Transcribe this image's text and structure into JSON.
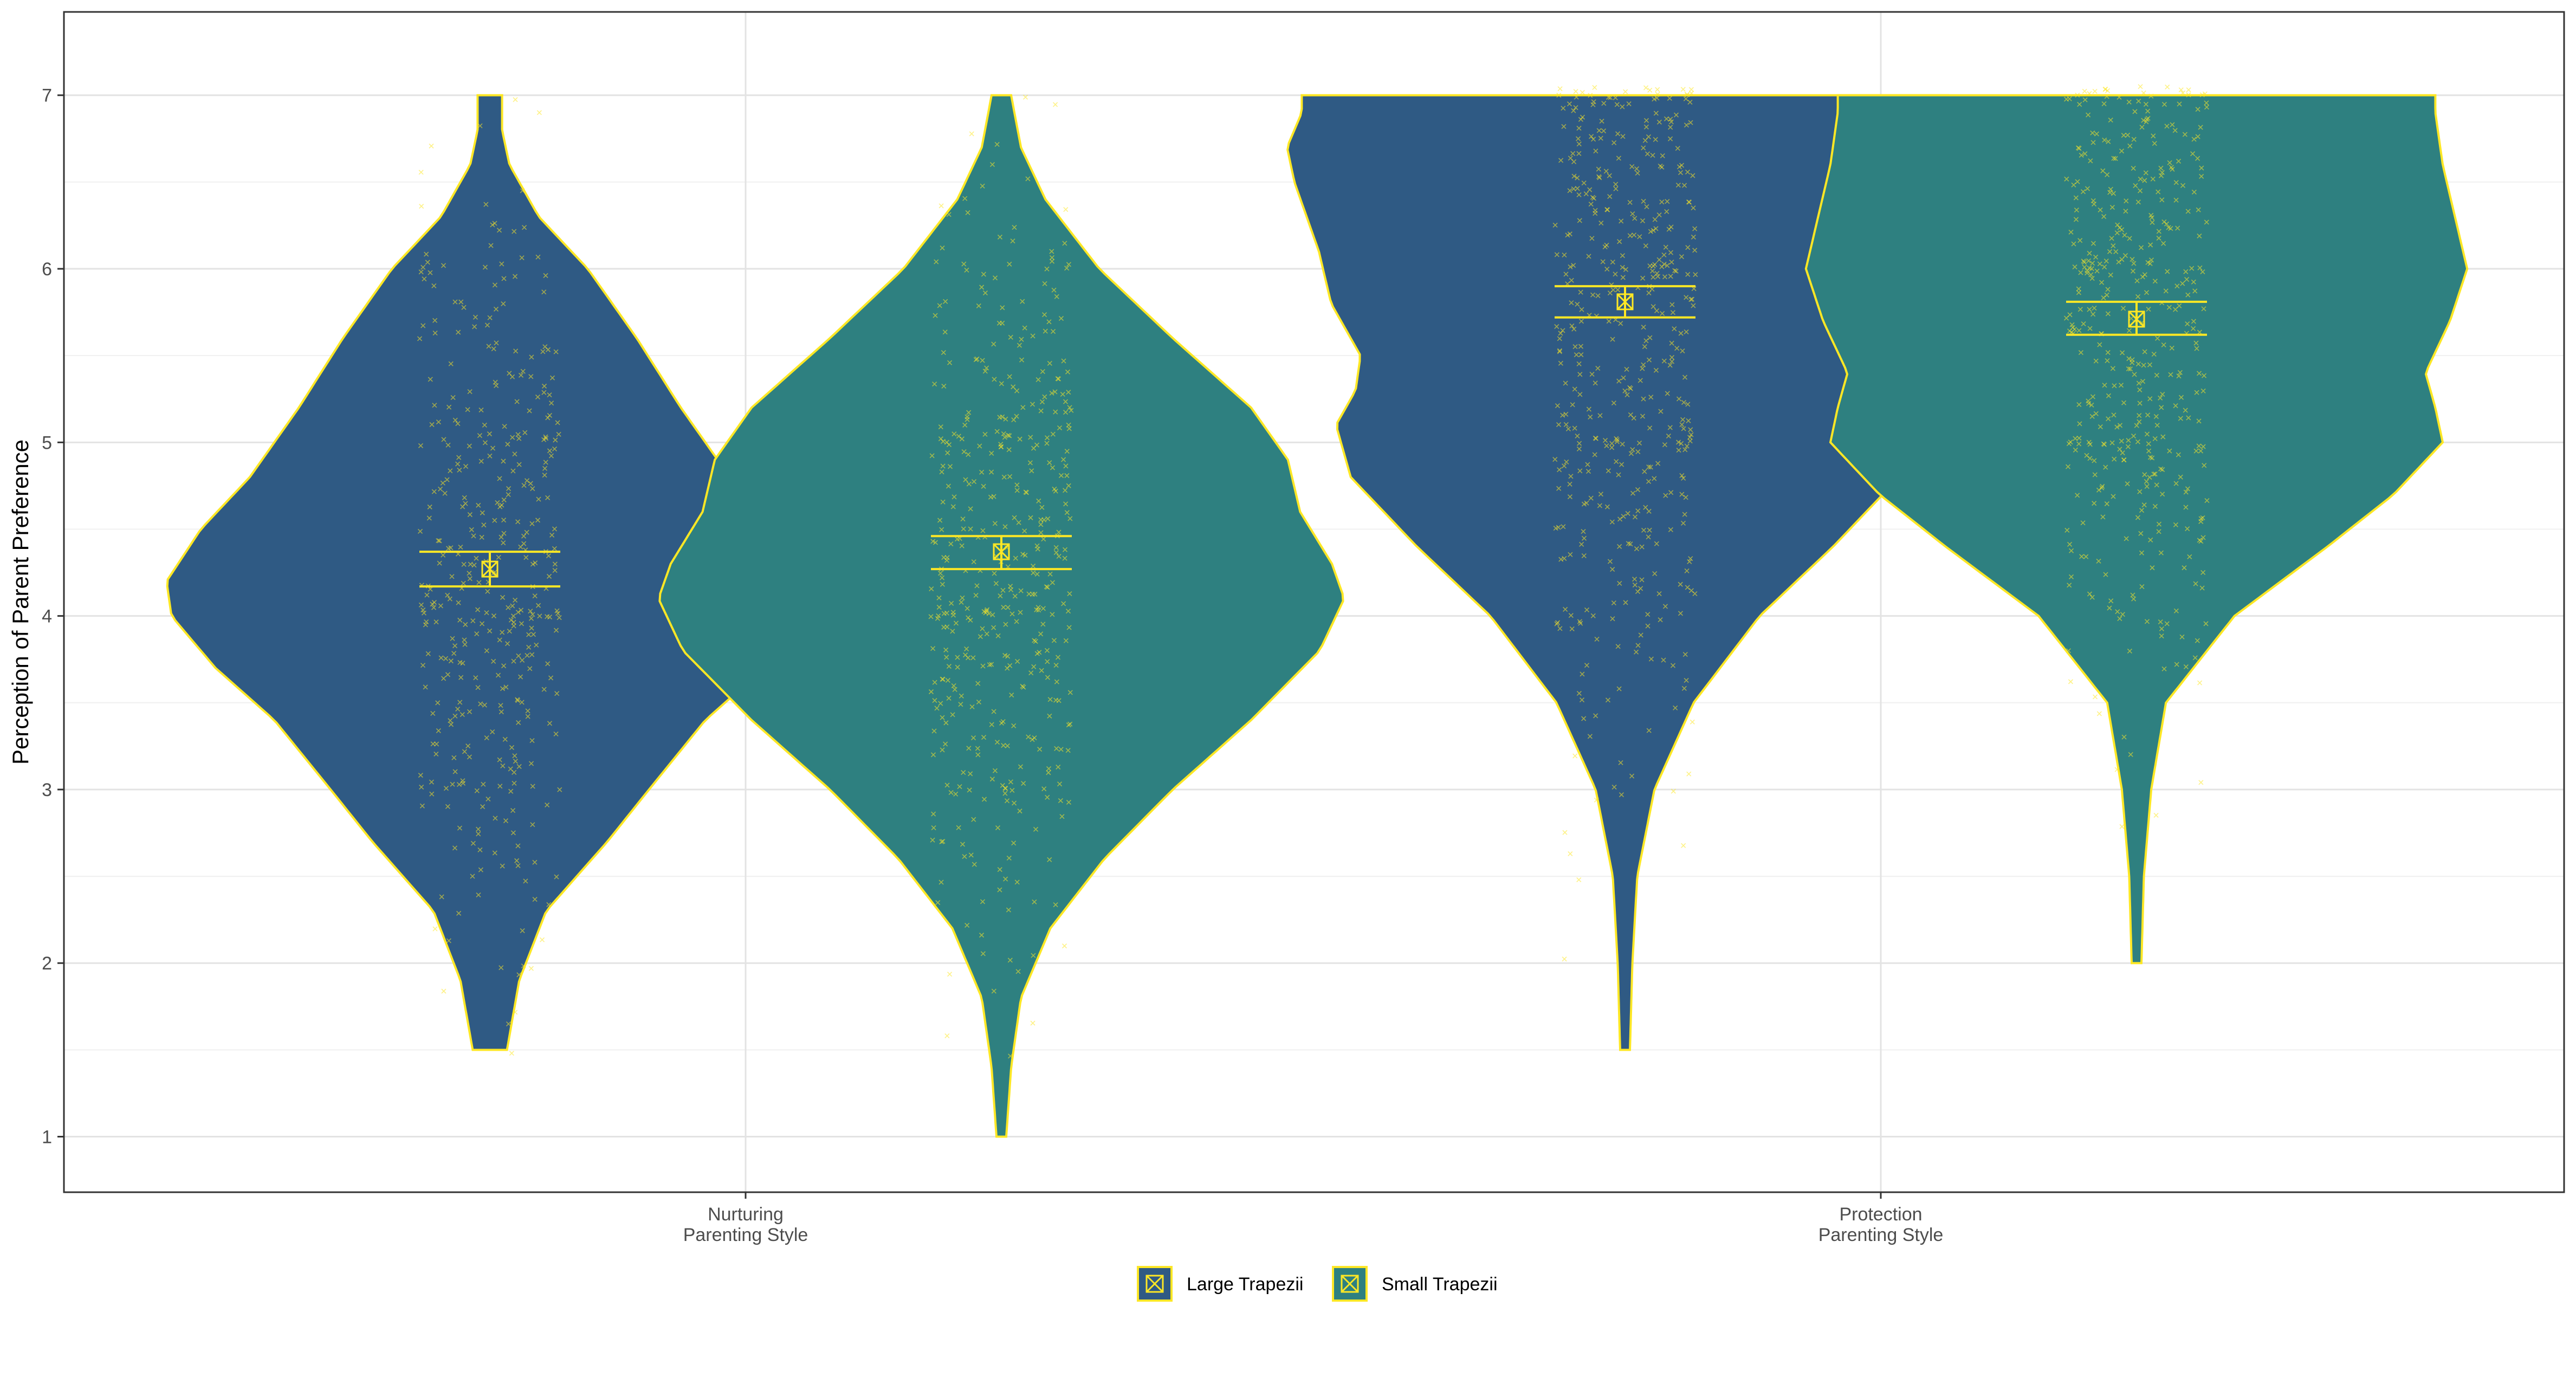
{
  "chart_data": {
    "type": "violin",
    "xlabel": "",
    "ylabel": "Perception of Parent Preference",
    "ylim": [
      0.68,
      7.48
    ],
    "yticks": [
      1,
      2,
      3,
      4,
      5,
      6,
      7
    ],
    "categories": [
      [
        "Nurturing",
        "Parenting Style"
      ],
      [
        "Protection",
        "Parenting Style"
      ]
    ],
    "grid": true,
    "legend_position": "bottom",
    "outline_color": "#FDE725",
    "point_color": "#FDE725",
    "series": [
      {
        "name": "Large Trapezii",
        "color": "#2F5A84",
        "groups": [
          {
            "category": 0,
            "min": 1.5,
            "max": 7.0,
            "mean": 4.27,
            "ci": [
              4.17,
              4.37
            ],
            "density": [
              [
                1.5,
                0.07
              ],
              [
                1.9,
                0.12
              ],
              [
                2.3,
                0.23
              ],
              [
                2.7,
                0.48
              ],
              [
                3.0,
                0.65
              ],
              [
                3.4,
                0.88
              ],
              [
                3.7,
                1.12
              ],
              [
                4.0,
                1.3
              ],
              [
                4.2,
                1.32
              ],
              [
                4.5,
                1.18
              ],
              [
                4.8,
                0.98
              ],
              [
                5.2,
                0.78
              ],
              [
                5.6,
                0.6
              ],
              [
                6.0,
                0.4
              ],
              [
                6.3,
                0.2
              ],
              [
                6.6,
                0.08
              ],
              [
                6.8,
                0.05
              ],
              [
                7.0,
                0.05
              ]
            ]
          },
          {
            "category": 1,
            "min": 1.5,
            "max": 7.0,
            "mean": 5.81,
            "ci": [
              5.72,
              5.9
            ],
            "density": [
              [
                1.5,
                0.02
              ],
              [
                2.0,
                0.03
              ],
              [
                2.5,
                0.05
              ],
              [
                3.0,
                0.12
              ],
              [
                3.5,
                0.28
              ],
              [
                4.0,
                0.55
              ],
              [
                4.4,
                0.85
              ],
              [
                4.8,
                1.12
              ],
              [
                5.1,
                1.18
              ],
              [
                5.3,
                1.1
              ],
              [
                5.5,
                1.08
              ],
              [
                5.8,
                1.2
              ],
              [
                6.1,
                1.25
              ],
              [
                6.5,
                1.35
              ],
              [
                6.7,
                1.38
              ],
              [
                6.9,
                1.32
              ],
              [
                7.0,
                1.32
              ]
            ]
          }
        ]
      },
      {
        "name": "Small Trapezii",
        "color": "#2E8080",
        "groups": [
          {
            "category": 0,
            "min": 1.0,
            "max": 7.0,
            "mean": 4.37,
            "ci": [
              4.27,
              4.46
            ],
            "density": [
              [
                1.0,
                0.02
              ],
              [
                1.4,
                0.04
              ],
              [
                1.8,
                0.08
              ],
              [
                2.2,
                0.2
              ],
              [
                2.6,
                0.42
              ],
              [
                3.0,
                0.7
              ],
              [
                3.4,
                1.02
              ],
              [
                3.8,
                1.3
              ],
              [
                4.1,
                1.4
              ],
              [
                4.3,
                1.35
              ],
              [
                4.6,
                1.22
              ],
              [
                4.9,
                1.17
              ],
              [
                5.2,
                1.02
              ],
              [
                5.6,
                0.7
              ],
              [
                6.0,
                0.4
              ],
              [
                6.4,
                0.18
              ],
              [
                6.7,
                0.08
              ],
              [
                7.0,
                0.04
              ]
            ]
          },
          {
            "category": 1,
            "min": 2.0,
            "max": 7.0,
            "mean": 5.71,
            "ci": [
              5.62,
              5.81
            ],
            "density": [
              [
                2.0,
                0.02
              ],
              [
                2.5,
                0.03
              ],
              [
                3.0,
                0.06
              ],
              [
                3.5,
                0.12
              ],
              [
                4.0,
                0.4
              ],
              [
                4.4,
                0.78
              ],
              [
                4.7,
                1.05
              ],
              [
                5.0,
                1.25
              ],
              [
                5.2,
                1.22
              ],
              [
                5.4,
                1.18
              ],
              [
                5.7,
                1.28
              ],
              [
                6.0,
                1.35
              ],
              [
                6.3,
                1.3
              ],
              [
                6.6,
                1.25
              ],
              [
                6.9,
                1.22
              ],
              [
                7.0,
                1.22
              ]
            ]
          }
        ]
      }
    ]
  }
}
